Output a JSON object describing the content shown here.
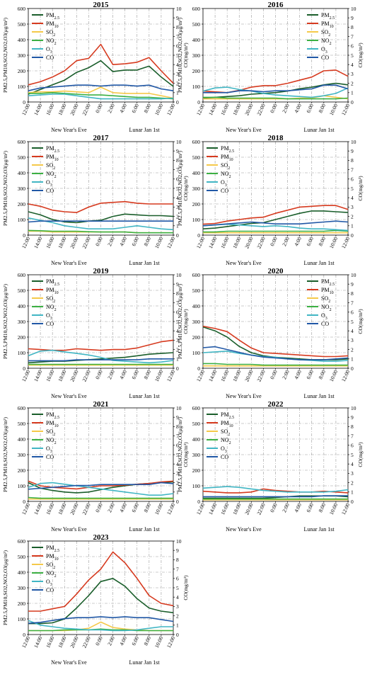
{
  "series_meta": [
    {
      "key": "pm25",
      "name": "PM",
      "sub": "2.5",
      "color": "#1a5e2b"
    },
    {
      "key": "pm10",
      "name": "PM",
      "sub": "10",
      "color": "#d63a1f"
    },
    {
      "key": "so2",
      "name": "SO",
      "sub": "2",
      "color": "#f5c94a"
    },
    {
      "key": "no2",
      "name": "NO",
      "sub": "2",
      "color": "#3cb043"
    },
    {
      "key": "o3",
      "name": "O",
      "sub": "3",
      "color": "#41b6c4"
    },
    {
      "key": "co",
      "name": "CO",
      "sub": "",
      "color": "#2158a6"
    }
  ],
  "axis_text": {
    "y_left_label": "PM2.5,PM10,SO2,NO2,O3(μg/m³)",
    "y_right_label": "CO(mg/m³)",
    "eve_label": "New Year's Eve",
    "lunar_label": "Lunar Jan 1st",
    "x_ticks": [
      "12:00",
      "14:00",
      "16:00",
      "18:00",
      "20:00",
      "22:00",
      "0:00",
      "2:00",
      "4:00",
      "6:00",
      "8:00",
      "10:00",
      "12:00"
    ],
    "y_left_ticks": [
      "0",
      "100",
      "200",
      "300",
      "400",
      "500",
      "600"
    ],
    "y_right_ticks": [
      "0",
      "1",
      "2",
      "3",
      "4",
      "5",
      "6",
      "7",
      "8",
      "9",
      "10"
    ]
  },
  "chart_data": [
    {
      "type": "line",
      "title": "2015",
      "ylim": [
        0,
        600
      ],
      "ylim_right": [
        0,
        10
      ],
      "grid": true,
      "legend": "top-left",
      "x": [
        "12:00",
        "14:00",
        "16:00",
        "18:00",
        "20:00",
        "22:00",
        "0:00",
        "2:00",
        "4:00",
        "6:00",
        "8:00",
        "10:00",
        "12:00"
      ],
      "series": {
        "pm25": [
          50,
          80,
          110,
          140,
          190,
          220,
          265,
          195,
          205,
          205,
          230,
          160,
          100
        ],
        "pm10": [
          110,
          130,
          160,
          200,
          265,
          280,
          370,
          240,
          245,
          255,
          285,
          200,
          120
        ],
        "so2": [
          60,
          65,
          65,
          70,
          65,
          60,
          95,
          60,
          55,
          55,
          55,
          40,
          25
        ],
        "no2": [
          55,
          55,
          60,
          55,
          50,
          45,
          45,
          40,
          35,
          30,
          30,
          25,
          20
        ],
        "o3": [
          40,
          45,
          50,
          50,
          40,
          30,
          20,
          20,
          20,
          20,
          20,
          20,
          25
        ],
        "co": [
          1.2,
          1.5,
          1.6,
          1.7,
          1.8,
          1.8,
          1.7,
          1.8,
          1.8,
          1.7,
          1.8,
          1.4,
          1.2
        ]
      }
    },
    {
      "type": "line",
      "title": "2016",
      "ylim": [
        0,
        600
      ],
      "ylim_right": [
        0,
        10
      ],
      "grid": true,
      "legend": "top-right",
      "x": [
        "12:00",
        "14:00",
        "16:00",
        "18:00",
        "20:00",
        "22:00",
        "0:00",
        "2:00",
        "4:00",
        "6:00",
        "8:00",
        "10:00",
        "12:00"
      ],
      "series": {
        "pm25": [
          25,
          30,
          35,
          40,
          50,
          55,
          60,
          70,
          85,
          95,
          110,
          120,
          110
        ],
        "pm10": [
          70,
          65,
          60,
          75,
          95,
          105,
          105,
          120,
          140,
          160,
          200,
          205,
          165
        ],
        "so2": [
          20,
          20,
          20,
          20,
          20,
          20,
          20,
          20,
          25,
          25,
          40,
          30,
          20
        ],
        "no2": [
          30,
          30,
          25,
          25,
          25,
          25,
          25,
          20,
          20,
          20,
          20,
          20,
          25
        ],
        "o3": [
          70,
          90,
          95,
          80,
          70,
          55,
          45,
          40,
          35,
          30,
          40,
          55,
          90
        ],
        "co": [
          1.0,
          1.0,
          1.0,
          1.2,
          1.2,
          1.1,
          1.2,
          1.2,
          1.3,
          1.4,
          1.8,
          1.8,
          1.4
        ]
      }
    },
    {
      "type": "line",
      "title": "2017",
      "ylim": [
        0,
        600
      ],
      "ylim_right": [
        0,
        10
      ],
      "grid": true,
      "legend": "top-left",
      "x": [
        "12:00",
        "14:00",
        "16:00",
        "18:00",
        "20:00",
        "22:00",
        "0:00",
        "2:00",
        "4:00",
        "6:00",
        "8:00",
        "10:00",
        "12:00"
      ],
      "series": {
        "pm25": [
          150,
          130,
          100,
          85,
          80,
          90,
          95,
          120,
          135,
          130,
          125,
          125,
          120
        ],
        "pm10": [
          200,
          185,
          160,
          150,
          145,
          180,
          205,
          210,
          215,
          205,
          200,
          200,
          200
        ],
        "so2": [
          25,
          25,
          20,
          20,
          20,
          20,
          20,
          20,
          20,
          15,
          15,
          15,
          15
        ],
        "no2": [
          30,
          28,
          25,
          25,
          25,
          22,
          20,
          20,
          20,
          15,
          15,
          15,
          15
        ],
        "o3": [
          110,
          95,
          80,
          60,
          50,
          40,
          40,
          40,
          50,
          60,
          50,
          40,
          35
        ],
        "co": [
          1.4,
          1.5,
          1.5,
          1.5,
          1.5,
          1.5,
          1.5,
          1.5,
          1.5,
          1.5,
          1.5,
          1.5,
          1.5
        ]
      }
    },
    {
      "type": "line",
      "title": "2018",
      "ylim": [
        0,
        600
      ],
      "ylim_right": [
        0,
        10
      ],
      "grid": true,
      "legend": "top-left",
      "x": [
        "12:00",
        "14:00",
        "16:00",
        "18:00",
        "20:00",
        "22:00",
        "0:00",
        "2:00",
        "4:00",
        "6:00",
        "8:00",
        "10:00",
        "12:00"
      ],
      "series": {
        "pm25": [
          40,
          45,
          55,
          65,
          75,
          80,
          100,
          120,
          140,
          155,
          155,
          150,
          145
        ],
        "pm10": [
          70,
          75,
          90,
          100,
          110,
          115,
          140,
          160,
          180,
          185,
          190,
          190,
          165
        ],
        "so2": [
          15,
          15,
          15,
          15,
          15,
          15,
          15,
          15,
          15,
          15,
          15,
          15,
          15
        ],
        "no2": [
          20,
          20,
          25,
          25,
          25,
          25,
          25,
          25,
          25,
          25,
          25,
          30,
          25
        ],
        "o3": [
          60,
          65,
          70,
          65,
          60,
          55,
          60,
          55,
          45,
          40,
          40,
          35,
          30
        ],
        "co": [
          1.0,
          1.1,
          1.2,
          1.3,
          1.4,
          1.3,
          1.2,
          1.2,
          1.2,
          1.3,
          1.4,
          1.5,
          1.4
        ]
      }
    },
    {
      "type": "line",
      "title": "2019",
      "ylim": [
        0,
        600
      ],
      "ylim_right": [
        0,
        10
      ],
      "grid": true,
      "legend": "top-left",
      "x": [
        "12:00",
        "14:00",
        "16:00",
        "18:00",
        "20:00",
        "22:00",
        "0:00",
        "2:00",
        "4:00",
        "6:00",
        "8:00",
        "10:00",
        "12:00"
      ],
      "series": {
        "pm25": [
          35,
          40,
          45,
          45,
          50,
          55,
          60,
          65,
          70,
          80,
          90,
          95,
          100
        ],
        "pm10": [
          125,
          120,
          115,
          115,
          125,
          120,
          115,
          120,
          120,
          130,
          150,
          170,
          180
        ],
        "so2": [
          20,
          20,
          20,
          20,
          20,
          20,
          20,
          20,
          20,
          20,
          20,
          20,
          20
        ],
        "no2": [
          25,
          25,
          25,
          25,
          25,
          25,
          25,
          25,
          25,
          25,
          25,
          25,
          25
        ],
        "o3": [
          80,
          110,
          115,
          105,
          95,
          85,
          70,
          50,
          45,
          40,
          35,
          40,
          50
        ],
        "co": [
          0.8,
          0.8,
          0.8,
          0.8,
          0.9,
          0.9,
          0.9,
          0.9,
          0.9,
          0.9,
          1.0,
          1.0,
          1.0
        ]
      }
    },
    {
      "type": "line",
      "title": "2020",
      "ylim": [
        0,
        600
      ],
      "ylim_right": [
        0,
        10
      ],
      "grid": true,
      "legend": "top-right",
      "x": [
        "12:00",
        "14:00",
        "16:00",
        "18:00",
        "20:00",
        "22:00",
        "0:00",
        "2:00",
        "4:00",
        "6:00",
        "8:00",
        "10:00",
        "12:00"
      ],
      "series": {
        "pm25": [
          265,
          240,
          200,
          140,
          100,
          80,
          70,
          65,
          60,
          55,
          55,
          55,
          60
        ],
        "pm10": [
          270,
          255,
          235,
          180,
          130,
          100,
          95,
          90,
          85,
          80,
          75,
          75,
          80
        ],
        "so2": [
          15,
          15,
          15,
          15,
          15,
          15,
          15,
          15,
          15,
          15,
          15,
          15,
          15
        ],
        "no2": [
          30,
          30,
          25,
          25,
          25,
          20,
          20,
          20,
          20,
          20,
          20,
          20,
          20
        ],
        "o3": [
          100,
          105,
          110,
          95,
          85,
          75,
          70,
          60,
          55,
          50,
          45,
          45,
          50
        ],
        "co": [
          2.2,
          2.3,
          2.0,
          1.7,
          1.4,
          1.2,
          1.1,
          1.0,
          0.9,
          0.9,
          0.9,
          1.0,
          1.1
        ]
      }
    },
    {
      "type": "line",
      "title": "2021",
      "ylim": [
        0,
        600
      ],
      "ylim_right": [
        0,
        10
      ],
      "grid": true,
      "legend": "top-left",
      "x": [
        "12:00",
        "14:00",
        "16:00",
        "18:00",
        "20:00",
        "22:00",
        "0:00",
        "2:00",
        "4:00",
        "6:00",
        "8:00",
        "10:00",
        "12:00"
      ],
      "series": {
        "pm25": [
          120,
          85,
          70,
          60,
          55,
          60,
          75,
          90,
          100,
          110,
          115,
          120,
          125
        ],
        "pm10": [
          130,
          100,
          90,
          85,
          80,
          90,
          100,
          100,
          105,
          110,
          115,
          125,
          130
        ],
        "so2": [
          15,
          15,
          15,
          15,
          15,
          15,
          15,
          15,
          15,
          15,
          15,
          15,
          15
        ],
        "no2": [
          25,
          20,
          20,
          20,
          20,
          20,
          20,
          20,
          20,
          20,
          20,
          20,
          20
        ],
        "o3": [
          90,
          115,
          120,
          110,
          100,
          90,
          80,
          70,
          60,
          50,
          40,
          40,
          50
        ],
        "co": [
          1.3,
          1.4,
          1.5,
          1.6,
          1.7,
          1.7,
          1.8,
          1.8,
          1.8,
          1.8,
          1.8,
          2.0,
          1.9
        ]
      }
    },
    {
      "type": "line",
      "title": "2022",
      "ylim": [
        0,
        600
      ],
      "ylim_right": [
        0,
        10
      ],
      "grid": true,
      "legend": "top-left",
      "x": [
        "12:00",
        "14:00",
        "16:00",
        "18:00",
        "20:00",
        "22:00",
        "0:00",
        "2:00",
        "4:00",
        "6:00",
        "8:00",
        "10:00",
        "12:00"
      ],
      "series": {
        "pm25": [
          20,
          20,
          20,
          20,
          20,
          20,
          25,
          30,
          35,
          35,
          35,
          35,
          30
        ],
        "pm10": [
          65,
          60,
          55,
          55,
          60,
          80,
          70,
          65,
          60,
          60,
          65,
          60,
          55
        ],
        "so2": [
          10,
          10,
          10,
          10,
          10,
          10,
          10,
          10,
          10,
          10,
          10,
          10,
          10
        ],
        "no2": [
          15,
          15,
          15,
          15,
          15,
          15,
          15,
          15,
          15,
          15,
          15,
          15,
          15
        ],
        "o3": [
          85,
          90,
          95,
          90,
          80,
          70,
          65,
          60,
          60,
          60,
          60,
          65,
          75
        ],
        "co": [
          0.5,
          0.5,
          0.5,
          0.5,
          0.5,
          0.5,
          0.5,
          0.5,
          0.5,
          0.5,
          0.6,
          0.6,
          0.6
        ]
      }
    },
    {
      "type": "line",
      "title": "2023",
      "ylim": [
        0,
        600
      ],
      "ylim_right": [
        0,
        10
      ],
      "grid": true,
      "legend": "top-left",
      "x": [
        "12:00",
        "14:00",
        "16:00",
        "18:00",
        "20:00",
        "22:00",
        "0:00",
        "2:00",
        "4:00",
        "6:00",
        "8:00",
        "10:00",
        "12:00"
      ],
      "series": {
        "pm25": [
          70,
          70,
          75,
          100,
          170,
          250,
          340,
          360,
          310,
          230,
          170,
          150,
          140
        ],
        "pm10": [
          150,
          150,
          165,
          180,
          260,
          350,
          420,
          530,
          460,
          360,
          250,
          200,
          185
        ],
        "so2": [
          25,
          25,
          25,
          25,
          30,
          40,
          80,
          45,
          35,
          30,
          25,
          25,
          25
        ],
        "no2": [
          25,
          25,
          25,
          30,
          30,
          30,
          35,
          30,
          30,
          25,
          25,
          25,
          25
        ],
        "o3": [
          90,
          60,
          50,
          40,
          35,
          30,
          30,
          25,
          25,
          30,
          40,
          50,
          50
        ],
        "co": [
          1.2,
          1.3,
          1.5,
          1.7,
          1.8,
          1.8,
          1.9,
          1.8,
          1.9,
          1.8,
          1.8,
          1.6,
          1.4
        ]
      }
    }
  ]
}
